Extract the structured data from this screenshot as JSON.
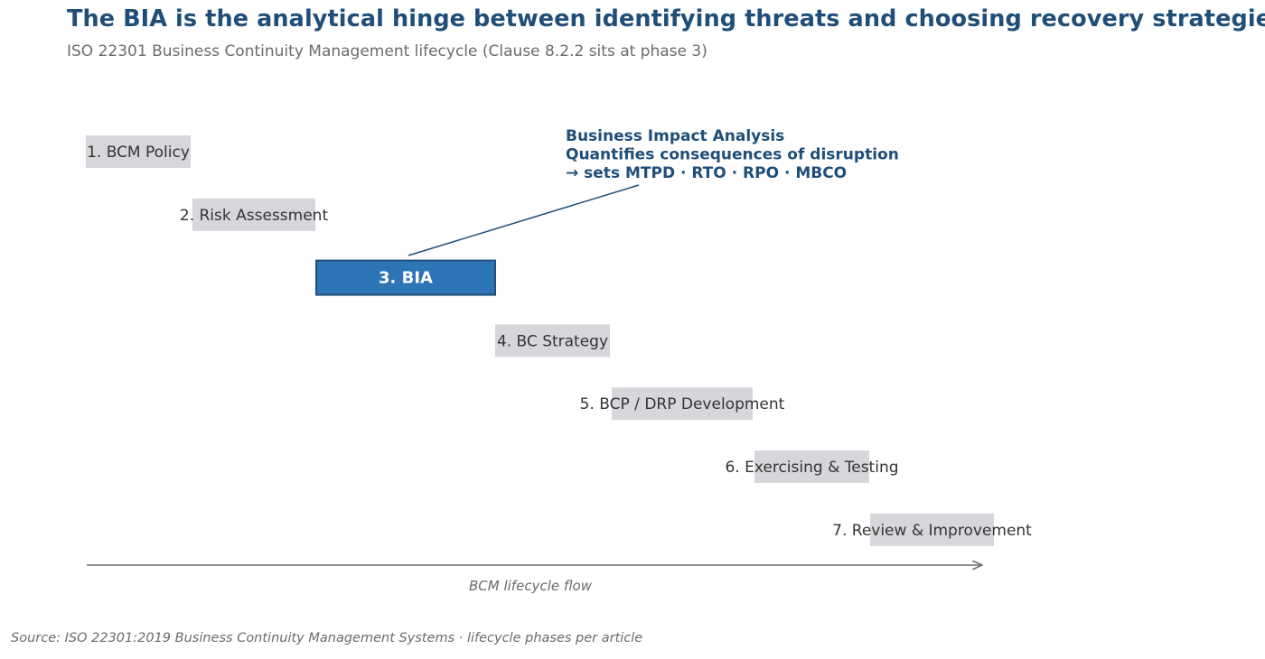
{
  "title": "The BIA is the analytical hinge between identifying threats and choosing recovery strategies",
  "subtitle": "ISO 22301 Business Continuity Management lifecycle (Clause 8.2.2 sits at phase 3)",
  "source": "Source: ISO 22301:2019 Business Continuity Management Systems  ·  lifecycle phases per article",
  "colors": {
    "bar": "#d5d7db",
    "highlight": "#2e75b6",
    "highlight_border": "#1f4e79",
    "accent_text": "#1f4e79",
    "axis": "#6b6b6b"
  },
  "chart_data": {
    "type": "bar",
    "orientation": "horizontal-staircase",
    "categories": [
      "1. BCM Policy",
      "2. Risk Assessment",
      "3. BIA",
      "4. BC Strategy",
      "5. BCP / DRP Development",
      "6. Exercising & Testing",
      "7. Review & Improvement"
    ],
    "bars": [
      {
        "start": 0.0,
        "end": 1.0
      },
      {
        "start": 1.0,
        "end": 2.0
      },
      {
        "start": 2.0,
        "end": 3.0
      },
      {
        "start": 3.0,
        "end": 4.0
      },
      {
        "start": 4.0,
        "end": 5.0
      },
      {
        "start": 5.0,
        "end": 6.0
      },
      {
        "start": 6.0,
        "end": 7.0
      }
    ],
    "highlight_index": 2,
    "annotation": {
      "lines": [
        "Business Impact Analysis",
        "Quantifies consequences of disruption",
        "→ sets MTPD · RTO · RPO · MBCO"
      ],
      "target_index": 2
    },
    "xlabel": "BCM lifecycle flow",
    "ylabel": "",
    "grid": false,
    "legend": "none"
  }
}
